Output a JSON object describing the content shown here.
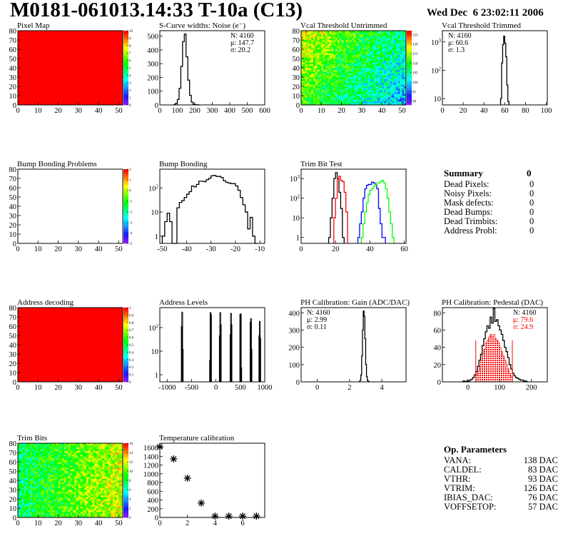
{
  "header": {
    "title": "M0181-061013.14:33 T-10a (C13)",
    "date": "Wed Dec  6 23:02:11 2006"
  },
  "summary": {
    "heading": "Summary",
    "total": "0",
    "items": [
      {
        "label": "Dead Pixels:",
        "value": "0"
      },
      {
        "label": "Noisy Pixels:",
        "value": "0"
      },
      {
        "label": "Mask defects:",
        "value": "0"
      },
      {
        "label": "Dead Bumps:",
        "value": "0"
      },
      {
        "label": "Dead Trimbits:",
        "value": "0"
      },
      {
        "label": "Address Probl:",
        "value": "0"
      }
    ]
  },
  "op_parameters": {
    "heading": "Op. Parameters",
    "items": [
      {
        "label": "VANA:",
        "value": "138 DAC"
      },
      {
        "label": "CALDEL:",
        "value": "83 DAC"
      },
      {
        "label": "VTHR:",
        "value": "93 DAC"
      },
      {
        "label": "VTRIM:",
        "value": "126 DAC"
      },
      {
        "label": "IBIAS_DAC:",
        "value": "76 DAC"
      },
      {
        "label": "VOFFSETOP:",
        "value": "57 DAC"
      }
    ]
  },
  "colors": {
    "frame": "#000000",
    "red": "#ff0000",
    "blue": "#0000ff",
    "green": "#00ff00",
    "black": "#000000"
  },
  "chart_data": [
    {
      "id": "pixel_map",
      "type": "heatmap",
      "title": "Pixel Map",
      "xlim": [
        0,
        52
      ],
      "ylim": [
        0,
        80
      ],
      "xticks": [
        0,
        10,
        20,
        30,
        40,
        50
      ],
      "yticks": [
        0,
        10,
        20,
        30,
        40,
        50,
        60,
        70,
        80
      ],
      "zlim": [
        0,
        10
      ],
      "zticks": [
        "0",
        "1",
        "2",
        "3",
        "4",
        "5",
        "6",
        "7",
        "8",
        "9",
        "10"
      ],
      "uniform_value": 10
    },
    {
      "id": "scurve",
      "type": "bar",
      "title": "S-Curve widths: Noise (e⁻)",
      "xlim": [
        0,
        600
      ],
      "ylim": [
        0,
        540
      ],
      "xticks": [
        0,
        100,
        200,
        300,
        400,
        500,
        600
      ],
      "yticks": [
        0,
        100,
        200,
        300,
        400,
        500
      ],
      "stats": [
        {
          "text": "N: 4160"
        },
        {
          "text": "μ: 147.7"
        },
        {
          "text": "σ: 20.2"
        }
      ],
      "series": [
        {
          "color": "#000000",
          "x0": 80,
          "bin": 10,
          "values": [
            3,
            12,
            40,
            120,
            280,
            460,
            515,
            350,
            180,
            70,
            20,
            5,
            2,
            1,
            0
          ]
        }
      ]
    },
    {
      "id": "vcal_untrimmed",
      "type": "heatmap",
      "title": "Vcal Threshold Untrimmed",
      "xlim": [
        0,
        52
      ],
      "ylim": [
        0,
        80
      ],
      "xticks": [
        0,
        10,
        20,
        30,
        40,
        50
      ],
      "yticks": [
        0,
        10,
        20,
        30,
        40,
        50,
        60,
        70,
        80
      ],
      "zlim": [
        88,
        127
      ],
      "zticks": [
        "90",
        "95",
        "100",
        "105",
        "110",
        "115",
        "120",
        "125"
      ],
      "ztick_values": [
        90,
        95,
        100,
        105,
        110,
        115,
        120,
        125
      ]
    },
    {
      "id": "vcal_trimmed",
      "type": "bar",
      "title": "Vcal Threshold Trimmed",
      "xlim": [
        0,
        101
      ],
      "ylim": [
        6,
        2500
      ],
      "log_y": true,
      "xticks": [
        0,
        20,
        40,
        60,
        80,
        100
      ],
      "yticks": [
        10,
        100,
        1000
      ],
      "stats": [
        {
          "text": "N: 4160"
        },
        {
          "text": "μ: 60.6"
        },
        {
          "text": "σ:  1.3"
        }
      ],
      "series": [
        {
          "color": "#000000",
          "x0": 56,
          "bin": 1,
          "values": [
            10,
            180,
            800,
            1600,
            900,
            300,
            30,
            8
          ]
        }
      ]
    },
    {
      "id": "bump_problems",
      "type": "heatmap",
      "title": "Bump Bonding Problems",
      "xlim": [
        0,
        52
      ],
      "ylim": [
        0,
        80
      ],
      "xticks": [
        0,
        10,
        20,
        30,
        40,
        50
      ],
      "yticks": [
        0,
        10,
        20,
        30,
        40,
        50,
        60,
        70,
        80
      ],
      "zlim": [
        -5,
        2
      ],
      "zticks": [
        "-5",
        "-4",
        "-3",
        "-2",
        "-1",
        "0",
        "1",
        "2"
      ],
      "empty": true
    },
    {
      "id": "bump_bonding",
      "type": "bar",
      "title": "Bump Bonding",
      "xlim": [
        -51,
        -8
      ],
      "ylim": [
        0.5,
        600
      ],
      "log_y": true,
      "xticks": [
        -50,
        -40,
        -30,
        -20,
        -10
      ],
      "yticks": [
        1,
        10,
        100
      ],
      "series": [
        {
          "color": "#000000",
          "x0": -50,
          "bin": 1,
          "values": [
            1,
            4,
            9,
            4,
            0,
            0,
            15,
            25,
            30,
            40,
            55,
            70,
            120,
            110,
            140,
            190,
            190,
            180,
            220,
            250,
            320,
            330,
            300,
            300,
            270,
            200,
            170,
            160,
            150,
            150,
            120,
            80,
            40,
            20,
            10,
            2,
            6,
            1,
            0
          ]
        }
      ]
    },
    {
      "id": "trim_bit_test",
      "type": "bar",
      "title": "Trim Bit Test",
      "xlim": [
        0,
        61
      ],
      "ylim": [
        0.5,
        3000
      ],
      "log_y": true,
      "xticks": [
        0,
        20,
        40,
        60
      ],
      "yticks": [
        1,
        10,
        100,
        1000
      ],
      "series": [
        {
          "color": "#000000",
          "x0": 16,
          "bin": 1,
          "values": [
            1,
            10,
            100,
            1000,
            2000,
            1000,
            200,
            30,
            1
          ]
        },
        {
          "color": "#ff0000",
          "x0": 19,
          "bin": 1,
          "values": [
            10,
            100,
            1000,
            1300,
            800,
            700,
            200,
            20
          ]
        },
        {
          "color": "#0000ff",
          "x0": 33,
          "bin": 1,
          "values": [
            1,
            5,
            20,
            100,
            300,
            450,
            500,
            500,
            650,
            600,
            500,
            300,
            30,
            5,
            1,
            1
          ]
        },
        {
          "color": "#00ff00",
          "x0": 35,
          "bin": 1,
          "values": [
            1,
            5,
            20,
            60,
            150,
            250,
            300,
            400,
            500,
            600,
            600,
            700,
            800,
            600,
            300,
            100,
            20,
            5,
            1
          ]
        }
      ]
    },
    {
      "id": "address_decoding",
      "type": "heatmap",
      "title": "Address decoding",
      "xlim": [
        0,
        52
      ],
      "ylim": [
        0,
        80
      ],
      "xticks": [
        0,
        10,
        20,
        30,
        40,
        50
      ],
      "yticks": [
        0,
        10,
        20,
        30,
        40,
        50,
        60,
        70,
        80
      ],
      "zlim": [
        0,
        1
      ],
      "zticks": [
        "0",
        "0.1",
        "0.2",
        "0.3",
        "0.4",
        "0.5",
        "0.6",
        "0.7",
        "0.8",
        "0.9",
        "1"
      ],
      "uniform_value": 1
    },
    {
      "id": "address_levels",
      "type": "bar",
      "title": "Address Levels",
      "xlim": [
        -1150,
        1000
      ],
      "ylim": [
        0.5,
        700
      ],
      "log_y": true,
      "xticks": [
        -1000,
        -500,
        0,
        500,
        1000
      ],
      "yticks": [
        1,
        10,
        100
      ],
      "spikes": {
        "bin": 10,
        "points": [
          [
            -710,
            110
          ],
          [
            -700,
            450
          ],
          [
            -690,
            12
          ],
          [
            -130,
            4
          ],
          [
            -120,
            430
          ],
          [
            -110,
            350
          ],
          [
            70,
            45
          ],
          [
            80,
            430
          ],
          [
            90,
            130
          ],
          [
            290,
            50
          ],
          [
            300,
            400
          ],
          [
            310,
            130
          ],
          [
            490,
            350
          ],
          [
            500,
            380
          ],
          [
            510,
            2
          ],
          [
            700,
            170
          ],
          [
            710,
            240
          ],
          [
            720,
            12
          ],
          [
            880,
            45
          ],
          [
            890,
            180
          ],
          [
            900,
            35
          ]
        ]
      }
    },
    {
      "id": "ph_gain",
      "type": "bar",
      "title": "PH Calibration: Gain (ADC/DAC)",
      "xlim": [
        -1,
        5.5
      ],
      "ylim": [
        0,
        430
      ],
      "xticks": [
        0,
        2,
        4
      ],
      "yticks": [
        0,
        100,
        200,
        300,
        400
      ],
      "stats": [
        {
          "text": "N: 4160"
        },
        {
          "text": "μ: 2.99"
        },
        {
          "text": "σ: 0.11"
        }
      ],
      "series": [
        {
          "color": "#000000",
          "x0": 2.6,
          "bin": 0.05,
          "values": [
            2,
            10,
            40,
            150,
            300,
            410,
            380,
            250,
            100,
            30,
            8,
            2,
            0
          ]
        }
      ]
    },
    {
      "id": "ph_pedestal",
      "type": "bar",
      "title": "PH Calibration: Pedestal (DAC)",
      "xlim": [
        -80,
        250
      ],
      "ylim": [
        0,
        86
      ],
      "xticks": [
        0,
        100,
        200
      ],
      "yticks": [
        0,
        20,
        40,
        60,
        80
      ],
      "stats": [
        {
          "text": "N: 4160"
        },
        {
          "text": "μ: 79.6",
          "color": "#ff0000"
        },
        {
          "text": "σ: 24.9",
          "color": "#ff0000"
        }
      ],
      "series": [
        {
          "color": "#ff0000",
          "fill": true,
          "x0": 25,
          "bin": 5,
          "values": [
            8,
            12,
            18,
            24,
            32,
            38,
            45,
            48,
            52,
            55,
            52,
            55,
            50,
            48,
            45,
            40,
            35,
            30,
            25,
            20,
            15,
            10,
            6
          ]
        },
        {
          "color": "#000000",
          "x0": -20,
          "bin": 5,
          "values": [
            0,
            1,
            0,
            1,
            1,
            2,
            3,
            5,
            8,
            12,
            18,
            25,
            32,
            42,
            50,
            58,
            65,
            62,
            75,
            68,
            85,
            70,
            72,
            65,
            60,
            55,
            48,
            40,
            35,
            28,
            20,
            15,
            10,
            7,
            5,
            4,
            3,
            2,
            2,
            1,
            1,
            0
          ]
        }
      ],
      "cut_lines": {
        "color": "#ff0000",
        "x": [
          25,
          140
        ],
        "height": 48
      }
    },
    {
      "id": "trim_bits",
      "type": "heatmap",
      "title": "Trim Bits",
      "xlim": [
        0,
        52
      ],
      "ylim": [
        0,
        80
      ],
      "xticks": [
        0,
        10,
        20,
        30,
        40,
        50
      ],
      "yticks": [
        0,
        10,
        20,
        30,
        40,
        50,
        60,
        70,
        80
      ],
      "zlim": [
        0,
        16
      ],
      "zticks": [
        "0",
        "2",
        "4",
        "6",
        "8",
        "10",
        "12",
        "14",
        "16"
      ],
      "ztick_values": [
        0,
        2,
        4,
        6,
        8,
        10,
        12,
        14,
        16
      ]
    },
    {
      "id": "temperature",
      "type": "scatter",
      "title": "Temperature calibration",
      "xlim": [
        0,
        7.6
      ],
      "ylim": [
        0,
        1700
      ],
      "xticks": [
        0,
        2,
        4,
        6
      ],
      "yticks": [
        0,
        200,
        400,
        600,
        800,
        1000,
        1200,
        1400,
        1600
      ],
      "points": [
        [
          0,
          1620
        ],
        [
          1,
          1340
        ],
        [
          2,
          900
        ],
        [
          3,
          330
        ],
        [
          4,
          30
        ],
        [
          5,
          30
        ],
        [
          6,
          30
        ],
        [
          7,
          30
        ]
      ]
    }
  ]
}
